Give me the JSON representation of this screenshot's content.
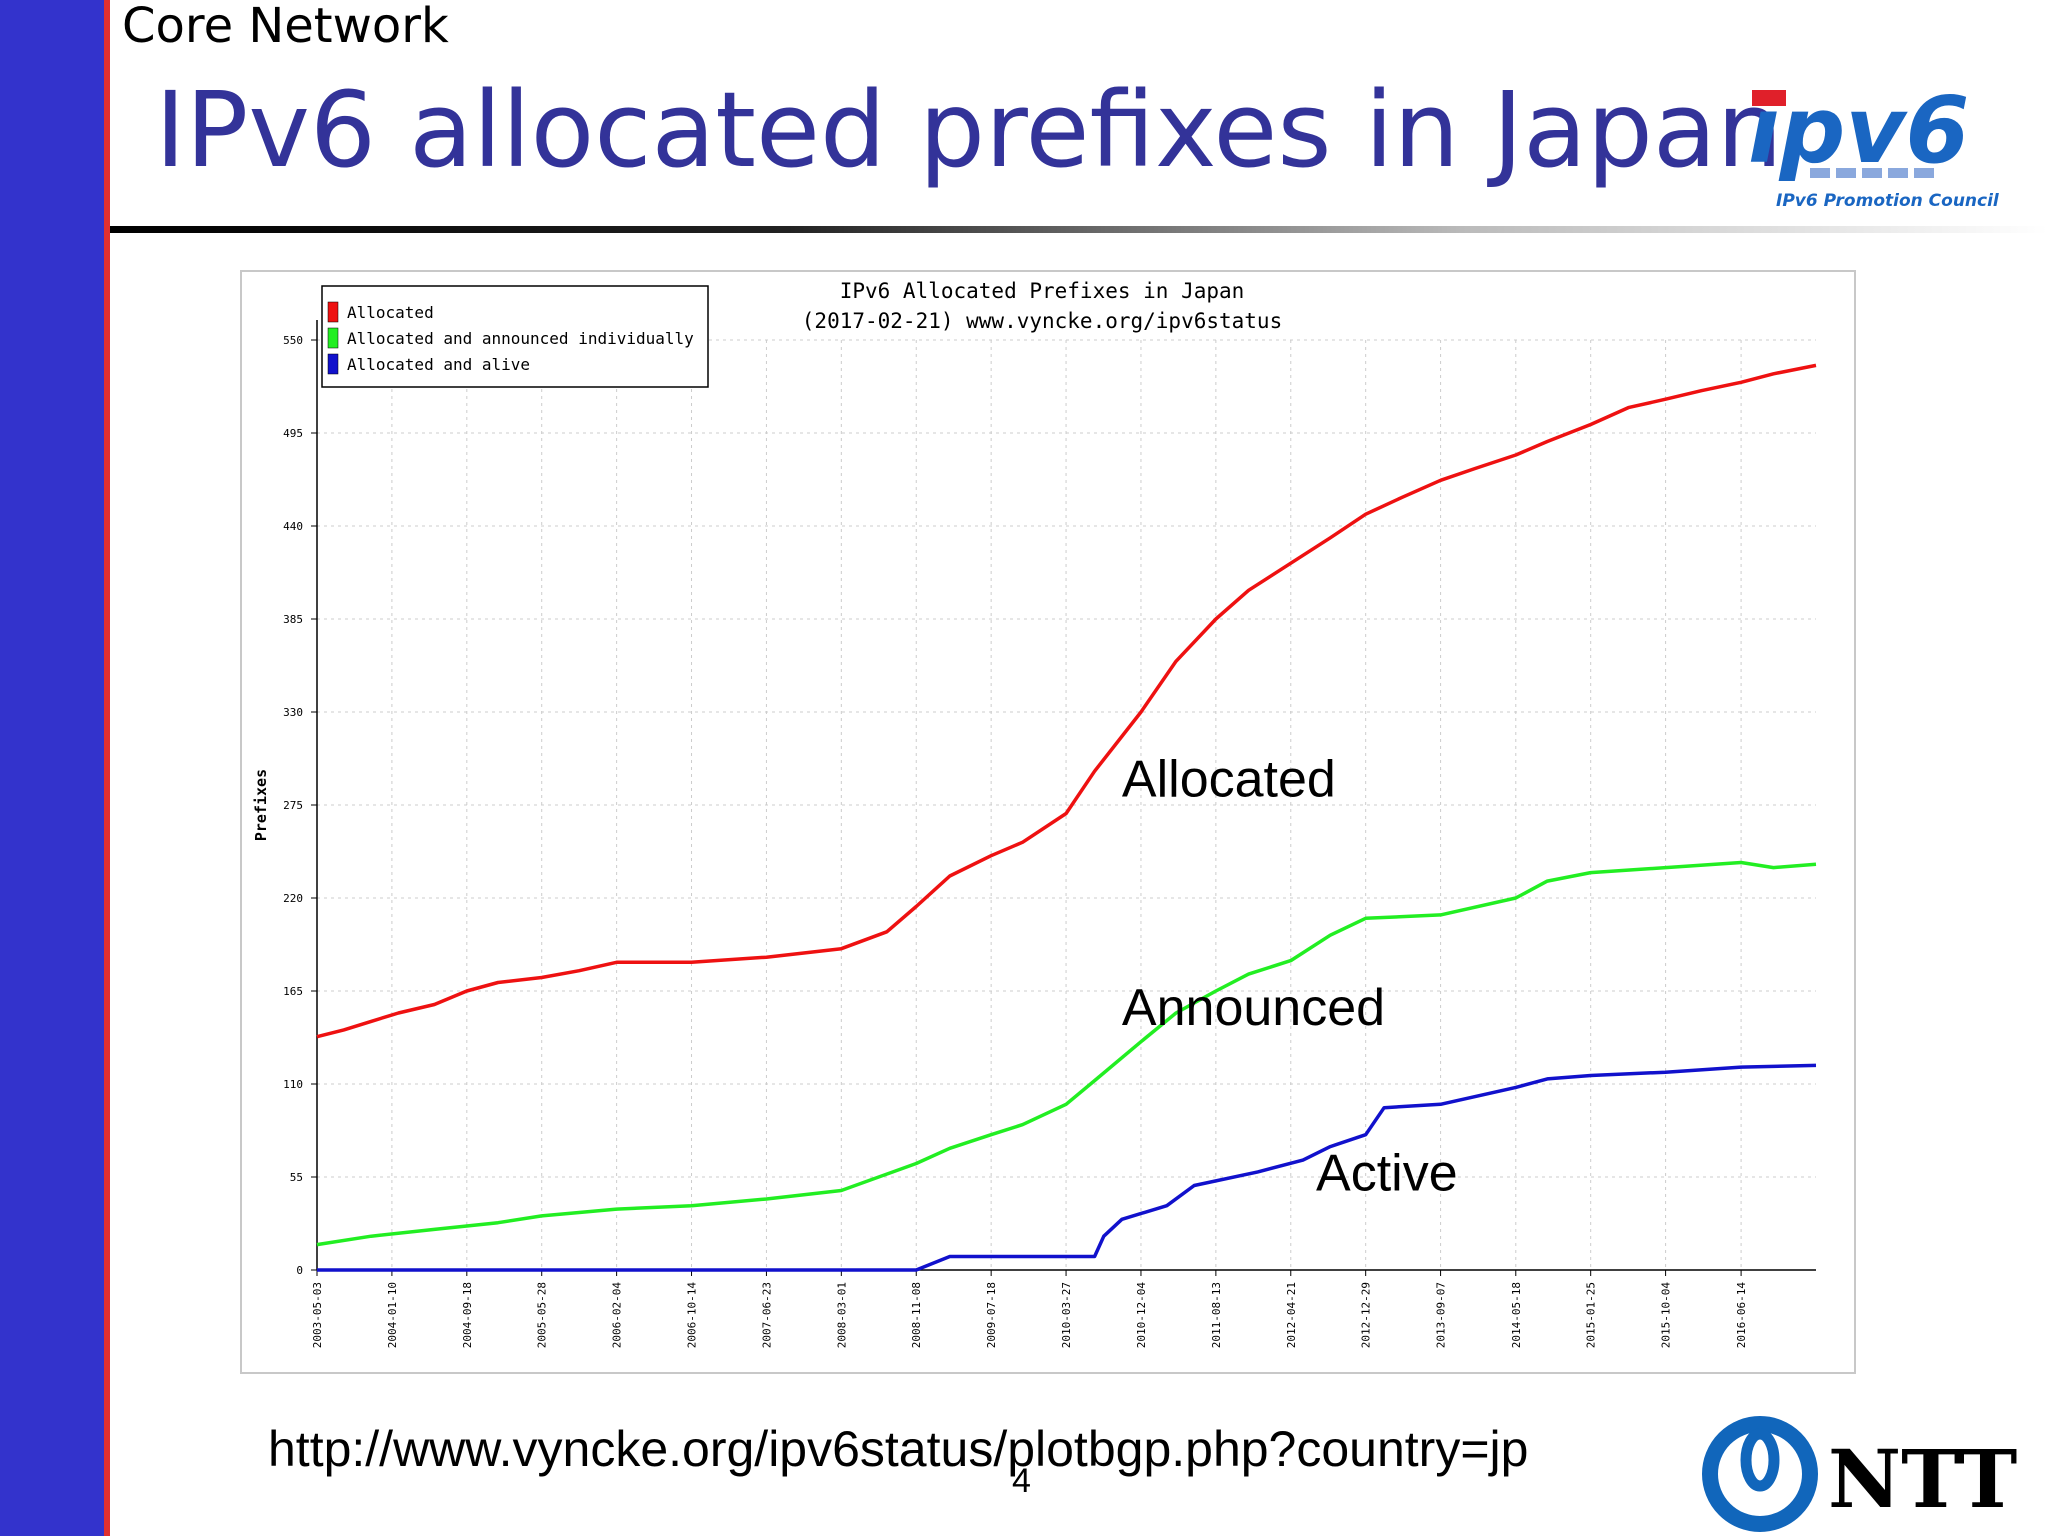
{
  "header": {
    "section": "Core Network",
    "title": "IPv6 allocated prefixes in Japan",
    "logo_text": "ipv6",
    "logo_caption": "IPv6 Promotion Council"
  },
  "footer": {
    "url": "http://www.vyncke.org/ipv6status/plotbgp.php?country=jp",
    "page_number": "4",
    "ntt_logo_text": "NTT"
  },
  "colors": {
    "sidebar": "#3333cc",
    "title": "#333399",
    "allocated": "#ee1111",
    "announced": "#22ee22",
    "alive": "#1111cc"
  },
  "annotations": {
    "allocated": "Allocated",
    "announced": "Announced",
    "active": "Active"
  },
  "chart_data": {
    "type": "line",
    "title": "IPv6 Allocated Prefixes in Japan",
    "subtitle": "(2017-02-21) www.vyncke.org/ipv6status",
    "ylabel": "Prefixes",
    "xlabel": "",
    "ylim": [
      0,
      550
    ],
    "yticks": [
      0,
      55,
      110,
      165,
      220,
      275,
      330,
      385,
      440,
      495,
      550
    ],
    "xlim": [
      "2003-05-03",
      "2017-02-21"
    ],
    "xticks": [
      "2003-05-03",
      "2004-01-10",
      "2004-09-18",
      "2005-05-28",
      "2006-02-04",
      "2006-10-14",
      "2007-06-23",
      "2008-03-01",
      "2008-11-08",
      "2009-07-18",
      "2010-03-27",
      "2010-12-04",
      "2011-08-13",
      "2012-04-21",
      "2012-12-29",
      "2013-09-07",
      "2014-05-18",
      "2015-01-25",
      "2015-10-04",
      "2016-06-14"
    ],
    "grid": true,
    "legend_position": "top-left",
    "series": [
      {
        "name": "Allocated",
        "color": "#ee1111",
        "x": [
          "2003-05-03",
          "2003-08-01",
          "2003-11-01",
          "2004-02-01",
          "2004-06-01",
          "2004-09-18",
          "2005-01-01",
          "2005-05-28",
          "2005-10-01",
          "2006-02-04",
          "2006-10-14",
          "2007-06-23",
          "2008-03-01",
          "2008-08-01",
          "2008-11-08",
          "2009-03-01",
          "2009-07-18",
          "2009-11-01",
          "2010-03-27",
          "2010-07-01",
          "2010-12-04",
          "2011-04-01",
          "2011-08-13",
          "2011-12-01",
          "2012-04-21",
          "2012-09-01",
          "2012-12-29",
          "2013-05-01",
          "2013-09-07",
          "2014-01-01",
          "2014-05-18",
          "2014-09-01",
          "2015-01-25",
          "2015-06-01",
          "2015-10-04",
          "2016-02-01",
          "2016-06-14",
          "2016-10-01",
          "2017-02-21"
        ],
        "y": [
          138,
          142,
          147,
          152,
          157,
          165,
          170,
          173,
          177,
          182,
          182,
          185,
          190,
          200,
          215,
          233,
          245,
          253,
          270,
          295,
          330,
          360,
          385,
          402,
          418,
          433,
          447,
          457,
          467,
          474,
          482,
          490,
          500,
          510,
          515,
          520,
          525,
          530,
          535
        ]
      },
      {
        "name": "Allocated and announced individually",
        "color": "#22ee22",
        "x": [
          "2003-05-03",
          "2003-11-01",
          "2004-06-01",
          "2005-01-01",
          "2005-05-28",
          "2006-02-04",
          "2006-10-14",
          "2007-06-23",
          "2008-03-01",
          "2008-11-08",
          "2009-03-01",
          "2009-07-18",
          "2009-11-01",
          "2010-03-27",
          "2010-07-01",
          "2010-12-04",
          "2011-04-01",
          "2011-08-13",
          "2011-12-01",
          "2012-04-21",
          "2012-09-01",
          "2012-12-29",
          "2013-09-07",
          "2014-05-18",
          "2014-09-01",
          "2015-01-25",
          "2015-10-04",
          "2016-06-14",
          "2016-10-01",
          "2017-02-21"
        ],
        "y": [
          15,
          20,
          24,
          28,
          32,
          36,
          38,
          42,
          47,
          63,
          72,
          80,
          86,
          98,
          112,
          135,
          152,
          165,
          175,
          183,
          198,
          208,
          210,
          220,
          230,
          235,
          238,
          241,
          238,
          240
        ]
      },
      {
        "name": "Allocated and alive",
        "color": "#1111cc",
        "x": [
          "2003-05-03",
          "2008-11-08",
          "2009-03-01",
          "2010-07-01",
          "2010-08-01",
          "2010-10-01",
          "2011-03-01",
          "2011-06-01",
          "2012-01-01",
          "2012-06-01",
          "2012-09-01",
          "2012-12-29",
          "2013-03-01",
          "2013-09-07",
          "2014-05-18",
          "2014-09-01",
          "2015-01-25",
          "2015-10-04",
          "2016-06-14",
          "2017-02-21"
        ],
        "y": [
          0,
          0,
          8,
          8,
          20,
          30,
          38,
          50,
          58,
          65,
          73,
          80,
          96,
          98,
          108,
          113,
          115,
          117,
          120,
          121
        ]
      }
    ]
  }
}
